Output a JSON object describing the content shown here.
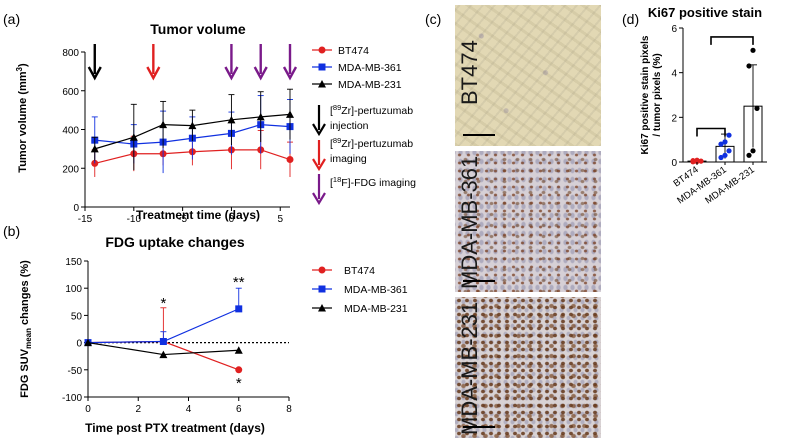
{
  "panel_labels": {
    "a": "(a)",
    "b": "(b)",
    "c": "(c)",
    "d": "(d)"
  },
  "legend_a": {
    "arrow_black": "[89Zr]-pertuzumab\ninjection",
    "arrow_red": "[89Zr]-pertuzumab\nimaging",
    "arrow_purple": "[18F]-FDG imaging"
  },
  "chart_data": [
    {
      "id": "a",
      "type": "line",
      "title": "Tumor volume",
      "xlabel": "Treatment time (days)",
      "ylabel": "Tumor volume (mm3)",
      "xlim": [
        -15,
        6
      ],
      "ylim": [
        0,
        800
      ],
      "xticks": [
        -15,
        -10,
        -5,
        0,
        5
      ],
      "yticks": [
        0,
        200,
        400,
        600,
        800
      ],
      "series": [
        {
          "name": "BT474",
          "color": "#e02020",
          "marker": "circle",
          "x": [
            -14,
            -10,
            -7,
            -4,
            0,
            3,
            6
          ],
          "y": [
            225,
            275,
            275,
            285,
            295,
            295,
            245
          ],
          "err": [
            70,
            90,
            60,
            70,
            100,
            100,
            90
          ]
        },
        {
          "name": "MDA-MB-361",
          "color": "#1030e0",
          "marker": "square",
          "x": [
            -14,
            -10,
            -7,
            -4,
            0,
            3,
            6
          ],
          "y": [
            345,
            325,
            335,
            355,
            380,
            425,
            415
          ],
          "err": [
            120,
            100,
            160,
            110,
            110,
            150,
            140
          ]
        },
        {
          "name": "MDA-MB-231",
          "color": "#000000",
          "marker": "triangle",
          "x": [
            -14,
            -10,
            -7,
            -4,
            0,
            3,
            6
          ],
          "y": [
            300,
            360,
            425,
            420,
            450,
            465,
            478
          ],
          "err": [
            60,
            170,
            120,
            80,
            130,
            130,
            130
          ]
        }
      ],
      "arrows": [
        {
          "x": -14,
          "color": "#000000"
        },
        {
          "x": -8,
          "color": "#e02020"
        },
        {
          "x": 0,
          "color": "#7a1a8a"
        },
        {
          "x": 3,
          "color": "#7a1a8a"
        },
        {
          "x": 6,
          "color": "#7a1a8a"
        }
      ]
    },
    {
      "id": "b",
      "type": "line",
      "title": "FDG uptake changes",
      "xlabel": "Time post PTX treatment (days)",
      "ylabel": "FDG SUVmean changes (%)",
      "xlim": [
        0,
        8
      ],
      "ylim": [
        -100,
        150
      ],
      "xticks": [
        0,
        2,
        4,
        6,
        8
      ],
      "yticks": [
        -100,
        -50,
        0,
        50,
        100,
        150
      ],
      "zero_line": "dotted",
      "series": [
        {
          "name": "BT474",
          "color": "#e02020",
          "marker": "circle",
          "x": [
            0,
            3,
            6
          ],
          "y": [
            0,
            2,
            -50
          ],
          "err": [
            0,
            62,
            0
          ]
        },
        {
          "name": "MDA-MB-361",
          "color": "#1030e0",
          "marker": "square",
          "x": [
            0,
            3,
            6
          ],
          "y": [
            0,
            2,
            62
          ],
          "err": [
            0,
            18,
            38
          ]
        },
        {
          "name": "MDA-MB-231",
          "color": "#000000",
          "marker": "triangle",
          "x": [
            0,
            3,
            6
          ],
          "y": [
            0,
            -22,
            -14
          ],
          "err": [
            0,
            0,
            0
          ]
        }
      ],
      "annotations": [
        {
          "text": "*",
          "x": 3,
          "y": 75
        },
        {
          "text": "**",
          "x": 6,
          "y": 113
        },
        {
          "text": "*",
          "x": 6,
          "y": -72
        }
      ]
    },
    {
      "id": "d",
      "type": "bar",
      "title": "Ki67 positive stain",
      "ylabel": "Ki67 positive stain pixels / tumor pixels (%)",
      "ylim": [
        0,
        6
      ],
      "yticks": [
        0,
        2,
        4,
        6
      ],
      "categories": [
        "BT474",
        "MDA-MB-361",
        "MDA-MB-231"
      ],
      "values": [
        0.04,
        0.7,
        2.5
      ],
      "err": [
        0.02,
        0.55,
        1.85
      ],
      "colors": [
        "#e02020",
        "#1030e0",
        "#000000"
      ],
      "points": [
        [
          0.01,
          0.02,
          0.04,
          0.06,
          0.08
        ],
        [
          0.2,
          0.3,
          0.5,
          0.8,
          0.9,
          1.2
        ],
        [
          0.3,
          0.5,
          2.4,
          4.3,
          5.0
        ]
      ],
      "brackets": [
        {
          "from": 0,
          "to": 1,
          "level": 1.5
        },
        {
          "from": 0.5,
          "to": 2,
          "level": 5.6
        }
      ]
    }
  ],
  "micrographs": [
    {
      "label": "BT474"
    },
    {
      "label": "MDA-MB-361"
    },
    {
      "label": "MDA-MB-231"
    }
  ]
}
